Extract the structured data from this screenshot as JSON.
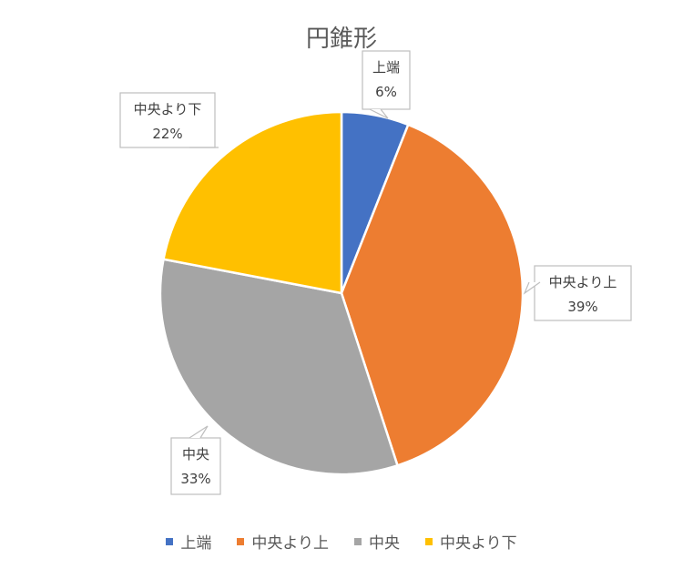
{
  "chart_data": {
    "type": "pie",
    "title": "円錐形",
    "categories": [
      "上端",
      "中央より上",
      "中央",
      "中央より下"
    ],
    "values": [
      6,
      39,
      33,
      22
    ],
    "data_labels": [
      "6%",
      "39%",
      "33%",
      "22%"
    ],
    "colors": [
      "#4472C4",
      "#ED7D31",
      "#A5A5A5",
      "#FFC000"
    ],
    "legend": "bottom",
    "data_label_style": "callout"
  }
}
